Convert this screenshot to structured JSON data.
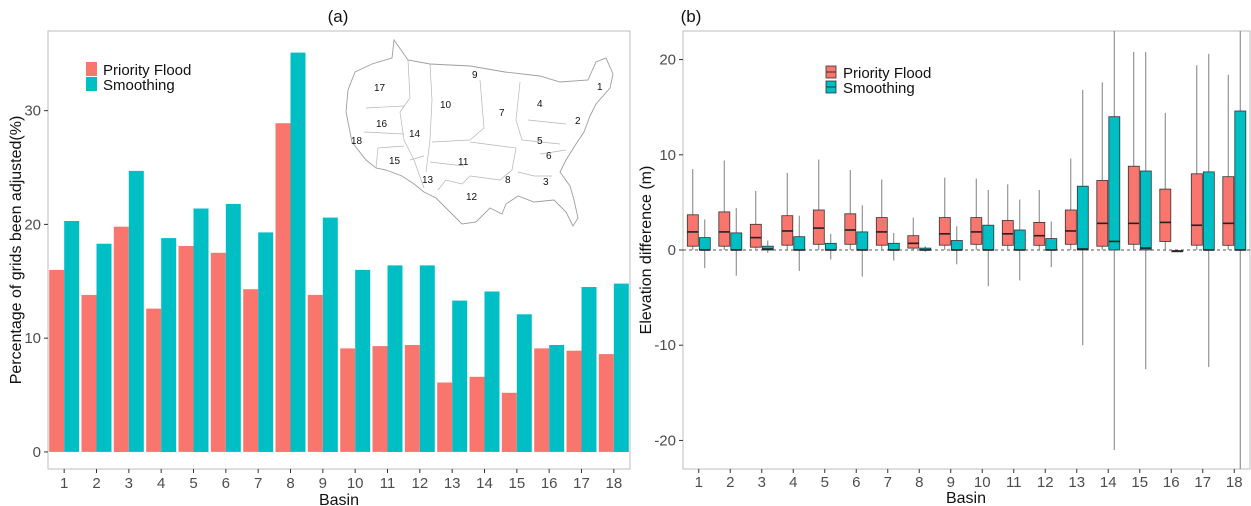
{
  "colors": {
    "priority": "#F8766D",
    "smoothing": "#00BFC4",
    "frame": "#bdbdbd",
    "whisker": "#7f7f7f"
  },
  "map_region_numbers": [
    "1",
    "2",
    "3",
    "4",
    "5",
    "6",
    "7",
    "8",
    "9",
    "10",
    "11",
    "12",
    "13",
    "14",
    "15",
    "16",
    "17",
    "18"
  ],
  "chart_data": [
    {
      "type": "bar",
      "panel_label": "(a)",
      "xlabel": "Basin",
      "ylabel": "Percentage of grids been adjusted(%)",
      "categories": [
        "1",
        "2",
        "3",
        "4",
        "5",
        "6",
        "7",
        "8",
        "9",
        "10",
        "11",
        "12",
        "13",
        "14",
        "15",
        "16",
        "17",
        "18"
      ],
      "yticks": [
        "0",
        "10",
        "20",
        "30"
      ],
      "ylim": [
        -1.5,
        37
      ],
      "grid": false,
      "legend_position": "top-left",
      "series": [
        {
          "name": "Priority Flood",
          "values": [
            16.0,
            13.8,
            19.8,
            12.6,
            18.1,
            17.5,
            14.3,
            28.9,
            13.8,
            9.1,
            9.3,
            9.4,
            6.1,
            6.6,
            5.2,
            9.1,
            8.9,
            8.6
          ]
        },
        {
          "name": "Smoothing",
          "values": [
            20.3,
            18.3,
            24.7,
            18.8,
            21.4,
            21.8,
            19.3,
            35.1,
            20.6,
            16.0,
            16.4,
            16.4,
            13.3,
            14.1,
            12.1,
            9.4,
            14.5,
            14.8
          ]
        }
      ]
    },
    {
      "type": "box",
      "panel_label": "(b)",
      "xlabel": "Basin",
      "ylabel": "Elevation difference (m)",
      "categories": [
        "1",
        "2",
        "3",
        "4",
        "5",
        "6",
        "7",
        "8",
        "9",
        "10",
        "11",
        "12",
        "13",
        "14",
        "15",
        "16",
        "17",
        "18"
      ],
      "yticks": [
        "-20",
        "-10",
        "0",
        "10",
        "20"
      ],
      "ylim": [
        -23,
        23
      ],
      "reference_line": 0,
      "grid": false,
      "legend_position": "top-center",
      "series": [
        {
          "name": "Priority Flood",
          "boxes": [
            {
              "min": 0.0,
              "q1": 0.4,
              "median": 1.9,
              "q3": 3.7,
              "max": 8.5
            },
            {
              "min": 0.0,
              "q1": 0.4,
              "median": 1.9,
              "q3": 4.0,
              "max": 9.4
            },
            {
              "min": 0.0,
              "q1": 0.3,
              "median": 1.3,
              "q3": 2.7,
              "max": 6.2
            },
            {
              "min": 0.0,
              "q1": 0.5,
              "median": 2.0,
              "q3": 3.6,
              "max": 8.1
            },
            {
              "min": 0.0,
              "q1": 0.6,
              "median": 2.3,
              "q3": 4.2,
              "max": 9.5
            },
            {
              "min": 0.0,
              "q1": 0.6,
              "median": 2.1,
              "q3": 3.8,
              "max": 8.4
            },
            {
              "min": 0.0,
              "q1": 0.5,
              "median": 1.9,
              "q3": 3.4,
              "max": 7.4
            },
            {
              "min": 0.0,
              "q1": 0.2,
              "median": 0.7,
              "q3": 1.5,
              "max": 3.4
            },
            {
              "min": 0.0,
              "q1": 0.5,
              "median": 1.7,
              "q3": 3.4,
              "max": 7.6
            },
            {
              "min": 0.0,
              "q1": 0.6,
              "median": 1.9,
              "q3": 3.4,
              "max": 7.5
            },
            {
              "min": 0.0,
              "q1": 0.5,
              "median": 1.7,
              "q3": 3.1,
              "max": 6.9
            },
            {
              "min": 0.0,
              "q1": 0.5,
              "median": 1.5,
              "q3": 2.9,
              "max": 6.3
            },
            {
              "min": 0.0,
              "q1": 0.6,
              "median": 2.0,
              "q3": 4.2,
              "max": 9.6
            },
            {
              "min": 0.0,
              "q1": 0.4,
              "median": 2.8,
              "q3": 7.3,
              "max": 17.6
            },
            {
              "min": 0.0,
              "q1": 0.6,
              "median": 2.8,
              "q3": 8.8,
              "max": 20.8
            },
            {
              "min": -0.1,
              "q1": 0.9,
              "median": 2.9,
              "q3": 6.4,
              "max": 14.4
            },
            {
              "min": 0.0,
              "q1": 0.5,
              "median": 2.6,
              "q3": 8.0,
              "max": 19.4
            },
            {
              "min": 0.0,
              "q1": 0.5,
              "median": 2.8,
              "q3": 7.7,
              "max": 18.4
            }
          ]
        },
        {
          "name": "Smoothing",
          "boxes": [
            {
              "min": -1.9,
              "q1": 0.0,
              "median": 0.0,
              "q3": 1.3,
              "max": 3.2
            },
            {
              "min": -2.7,
              "q1": 0.0,
              "median": 0.0,
              "q3": 1.8,
              "max": 4.4
            },
            {
              "min": -0.3,
              "q1": 0.0,
              "median": 0.1,
              "q3": 0.4,
              "max": 1.0
            },
            {
              "min": -2.2,
              "q1": 0.0,
              "median": 0.0,
              "q3": 1.4,
              "max": 3.6
            },
            {
              "min": -1.0,
              "q1": 0.0,
              "median": 0.0,
              "q3": 0.7,
              "max": 1.7
            },
            {
              "min": -2.8,
              "q1": 0.0,
              "median": 0.0,
              "q3": 1.9,
              "max": 4.7
            },
            {
              "min": -1.1,
              "q1": 0.0,
              "median": 0.0,
              "q3": 0.7,
              "max": 1.8
            },
            {
              "min": -0.2,
              "q1": 0.0,
              "median": 0.0,
              "q3": 0.2,
              "max": 0.4
            },
            {
              "min": -1.5,
              "q1": 0.0,
              "median": 0.0,
              "q3": 1.0,
              "max": 2.5
            },
            {
              "min": -3.8,
              "q1": 0.0,
              "median": 0.0,
              "q3": 2.6,
              "max": 6.3
            },
            {
              "min": -3.2,
              "q1": 0.0,
              "median": 0.0,
              "q3": 2.1,
              "max": 5.3
            },
            {
              "min": -1.8,
              "q1": 0.0,
              "median": 0.0,
              "q3": 1.2,
              "max": 3.0
            },
            {
              "min": -10.0,
              "q1": 0.0,
              "median": 0.1,
              "q3": 6.7,
              "max": 16.8
            },
            {
              "min": -21.0,
              "q1": 0.0,
              "median": 0.9,
              "q3": 14.0,
              "max": 23.0
            },
            {
              "min": -12.5,
              "q1": 0.0,
              "median": 0.2,
              "q3": 8.3,
              "max": 20.8
            },
            {
              "min": -0.1,
              "q1": -0.1,
              "median": -0.1,
              "q3": -0.1,
              "max": -0.1
            },
            {
              "min": -12.3,
              "q1": 0.0,
              "median": 0.0,
              "q3": 8.2,
              "max": 20.6
            },
            {
              "min": -23.0,
              "q1": 0.0,
              "median": 0.0,
              "q3": 14.6,
              "max": 23.0
            }
          ]
        }
      ]
    }
  ]
}
